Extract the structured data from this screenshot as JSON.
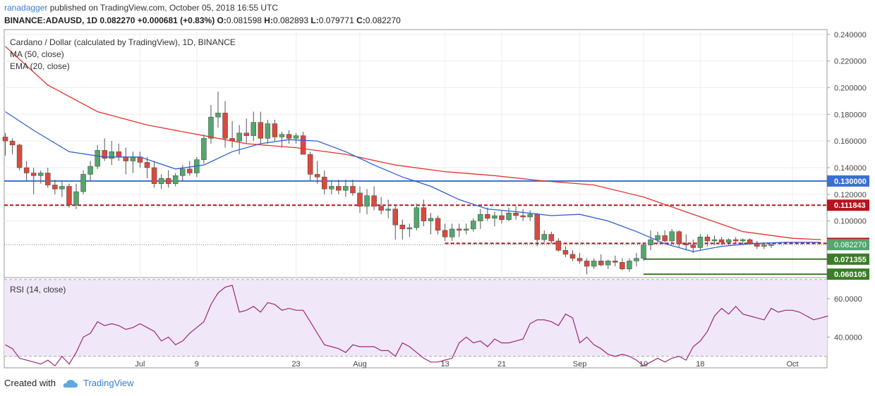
{
  "header": {
    "author": "ranadagger",
    "published_text": "published on TradingView.com, October 05, 2018 16:55 UTC",
    "symbol": "BINANCE:ADAUSD, 1D",
    "price": "0.082270",
    "change": "+0.000681 (+0.83%)",
    "open_label": "O:",
    "open": "0.081598",
    "high_label": "H:",
    "high": "0.082893",
    "low_label": "L:",
    "low": "0.079771",
    "close_label": "C:",
    "close": "0.082270"
  },
  "legend": {
    "title": "Cardano / Dollar (calculated by TradingView), 1D, BINANCE",
    "ma": "MA (50, close)",
    "ema": "EMA (20, close)",
    "rsi": "RSI (14, close)"
  },
  "footer": {
    "created_with": "Created with",
    "brand": "TradingView"
  },
  "colors": {
    "bull": "#53a66c",
    "bear": "#d84a3e",
    "ma": "#e0342b",
    "ema": "#2f5fd4",
    "level_blue": "#3c6fd3",
    "level_red": "#b8121e",
    "support_green": "#3b7d2a",
    "rsi_line": "#a0267a",
    "rsi_band": "#f0e8f8"
  },
  "chart_data": [
    {
      "type": "candlestick",
      "ylim": [
        0.0575,
        0.2436
      ],
      "y_ticks": [
        "0.240000",
        "0.220000",
        "0.200000",
        "0.180000",
        "0.160000",
        "0.140000",
        "0.120000",
        "0.100000"
      ],
      "x_ticks": [
        {
          "label": "Jul",
          "day": 19
        },
        {
          "label": "9",
          "day": 27
        },
        {
          "label": "23",
          "day": 41
        },
        {
          "label": "Aug",
          "day": 50
        },
        {
          "label": "13",
          "day": 62
        },
        {
          "label": "21",
          "day": 70
        },
        {
          "label": "Sep",
          "day": 81
        },
        {
          "label": "10",
          "day": 90
        },
        {
          "label": "18",
          "day": 98
        },
        {
          "label": "Oct",
          "day": 111
        }
      ],
      "candles": [
        [
          0.163,
          0.166,
          0.149,
          0.16
        ],
        [
          0.16,
          0.162,
          0.15,
          0.157
        ],
        [
          0.157,
          0.158,
          0.138,
          0.14
        ],
        [
          0.14,
          0.145,
          0.13,
          0.136
        ],
        [
          0.136,
          0.14,
          0.12,
          0.134
        ],
        [
          0.134,
          0.138,
          0.128,
          0.136
        ],
        [
          0.136,
          0.14,
          0.125,
          0.127
        ],
        [
          0.127,
          0.131,
          0.12,
          0.124
        ],
        [
          0.124,
          0.13,
          0.118,
          0.126
        ],
        [
          0.126,
          0.128,
          0.11,
          0.112
        ],
        [
          0.112,
          0.128,
          0.109,
          0.122
        ],
        [
          0.122,
          0.138,
          0.12,
          0.135
        ],
        [
          0.135,
          0.145,
          0.13,
          0.141
        ],
        [
          0.141,
          0.157,
          0.139,
          0.153
        ],
        [
          0.153,
          0.162,
          0.145,
          0.147
        ],
        [
          0.147,
          0.16,
          0.142,
          0.152
        ],
        [
          0.152,
          0.158,
          0.145,
          0.148
        ],
        [
          0.148,
          0.155,
          0.135,
          0.145
        ],
        [
          0.145,
          0.152,
          0.136,
          0.148
        ],
        [
          0.148,
          0.152,
          0.14,
          0.144
        ],
        [
          0.144,
          0.148,
          0.132,
          0.14
        ],
        [
          0.14,
          0.145,
          0.125,
          0.128
        ],
        [
          0.128,
          0.135,
          0.124,
          0.132
        ],
        [
          0.132,
          0.138,
          0.125,
          0.128
        ],
        [
          0.128,
          0.136,
          0.126,
          0.134
        ],
        [
          0.134,
          0.142,
          0.13,
          0.139
        ],
        [
          0.139,
          0.145,
          0.134,
          0.136
        ],
        [
          0.136,
          0.148,
          0.133,
          0.146
        ],
        [
          0.146,
          0.165,
          0.143,
          0.162
        ],
        [
          0.162,
          0.187,
          0.158,
          0.178
        ],
        [
          0.178,
          0.197,
          0.17,
          0.181
        ],
        [
          0.181,
          0.19,
          0.155,
          0.162
        ],
        [
          0.162,
          0.175,
          0.155,
          0.16
        ],
        [
          0.16,
          0.172,
          0.15,
          0.166
        ],
        [
          0.166,
          0.177,
          0.158,
          0.164
        ],
        [
          0.164,
          0.182,
          0.16,
          0.174
        ],
        [
          0.174,
          0.182,
          0.158,
          0.162
        ],
        [
          0.162,
          0.176,
          0.158,
          0.173
        ],
        [
          0.173,
          0.176,
          0.16,
          0.163
        ],
        [
          0.163,
          0.167,
          0.155,
          0.165
        ],
        [
          0.165,
          0.168,
          0.158,
          0.162
        ],
        [
          0.162,
          0.166,
          0.158,
          0.164
        ],
        [
          0.164,
          0.167,
          0.15,
          0.15
        ],
        [
          0.15,
          0.152,
          0.13,
          0.135
        ],
        [
          0.135,
          0.145,
          0.128,
          0.133
        ],
        [
          0.133,
          0.138,
          0.12,
          0.124
        ],
        [
          0.124,
          0.13,
          0.12,
          0.126
        ],
        [
          0.126,
          0.131,
          0.12,
          0.123
        ],
        [
          0.123,
          0.131,
          0.118,
          0.126
        ],
        [
          0.126,
          0.131,
          0.119,
          0.121
        ],
        [
          0.121,
          0.126,
          0.106,
          0.111
        ],
        [
          0.111,
          0.124,
          0.105,
          0.119
        ],
        [
          0.119,
          0.126,
          0.108,
          0.111
        ],
        [
          0.111,
          0.118,
          0.105,
          0.108
        ],
        [
          0.108,
          0.116,
          0.102,
          0.109
        ],
        [
          0.109,
          0.111,
          0.086,
          0.097
        ],
        [
          0.097,
          0.101,
          0.086,
          0.094
        ],
        [
          0.094,
          0.098,
          0.088,
          0.095
        ],
        [
          0.095,
          0.113,
          0.093,
          0.11
        ],
        [
          0.11,
          0.116,
          0.096,
          0.1
        ],
        [
          0.1,
          0.106,
          0.09,
          0.102
        ],
        [
          0.102,
          0.104,
          0.09,
          0.093
        ],
        [
          0.093,
          0.098,
          0.085,
          0.088
        ],
        [
          0.088,
          0.098,
          0.085,
          0.094
        ],
        [
          0.094,
          0.098,
          0.088,
          0.093
        ],
        [
          0.093,
          0.098,
          0.09,
          0.094
        ],
        [
          0.094,
          0.102,
          0.092,
          0.1
        ],
        [
          0.1,
          0.109,
          0.094,
          0.105
        ],
        [
          0.105,
          0.11,
          0.1,
          0.102
        ],
        [
          0.102,
          0.107,
          0.096,
          0.104
        ],
        [
          0.104,
          0.108,
          0.098,
          0.101
        ],
        [
          0.101,
          0.11,
          0.1,
          0.106
        ],
        [
          0.106,
          0.111,
          0.101,
          0.104
        ],
        [
          0.104,
          0.109,
          0.1,
          0.103
        ],
        [
          0.103,
          0.108,
          0.1,
          0.105
        ],
        [
          0.105,
          0.106,
          0.081,
          0.086
        ],
        [
          0.086,
          0.093,
          0.084,
          0.09
        ],
        [
          0.09,
          0.092,
          0.083,
          0.085
        ],
        [
          0.085,
          0.087,
          0.077,
          0.078
        ],
        [
          0.078,
          0.081,
          0.073,
          0.075
        ],
        [
          0.075,
          0.078,
          0.07,
          0.072
        ],
        [
          0.072,
          0.076,
          0.068,
          0.07
        ],
        [
          0.07,
          0.072,
          0.06,
          0.066
        ],
        [
          0.066,
          0.072,
          0.064,
          0.07
        ],
        [
          0.07,
          0.075,
          0.066,
          0.067
        ],
        [
          0.067,
          0.071,
          0.064,
          0.07
        ],
        [
          0.07,
          0.074,
          0.066,
          0.069
        ],
        [
          0.069,
          0.072,
          0.063,
          0.064
        ],
        [
          0.064,
          0.072,
          0.062,
          0.07
        ],
        [
          0.07,
          0.076,
          0.066,
          0.072
        ],
        [
          0.072,
          0.083,
          0.07,
          0.082
        ],
        [
          0.082,
          0.093,
          0.078,
          0.086
        ],
        [
          0.086,
          0.092,
          0.083,
          0.089
        ],
        [
          0.089,
          0.093,
          0.084,
          0.085
        ],
        [
          0.085,
          0.094,
          0.083,
          0.092
        ],
        [
          0.092,
          0.093,
          0.08,
          0.083
        ],
        [
          0.083,
          0.09,
          0.078,
          0.082
        ],
        [
          0.082,
          0.086,
          0.076,
          0.08
        ],
        [
          0.08,
          0.09,
          0.078,
          0.088
        ],
        [
          0.088,
          0.09,
          0.081,
          0.085
        ],
        [
          0.085,
          0.089,
          0.082,
          0.086
        ],
        [
          0.086,
          0.088,
          0.082,
          0.084
        ],
        [
          0.084,
          0.087,
          0.082,
          0.086
        ],
        [
          0.086,
          0.088,
          0.083,
          0.085
        ],
        [
          0.085,
          0.087,
          0.082,
          0.086
        ],
        [
          0.086,
          0.087,
          0.082,
          0.083
        ],
        [
          0.083,
          0.085,
          0.079,
          0.081
        ],
        [
          0.081,
          0.084,
          0.079,
          0.082
        ],
        [
          0.0816,
          0.0829,
          0.0798,
          0.0823
        ]
      ],
      "ma50": [
        [
          0,
          0.231
        ],
        [
          6,
          0.202
        ],
        [
          13,
          0.182
        ],
        [
          20,
          0.172
        ],
        [
          27,
          0.165
        ],
        [
          34,
          0.158
        ],
        [
          41,
          0.155
        ],
        [
          48,
          0.15
        ],
        [
          55,
          0.142
        ],
        [
          62,
          0.137
        ],
        [
          69,
          0.134
        ],
        [
          76,
          0.13
        ],
        [
          83,
          0.127
        ],
        [
          90,
          0.118
        ],
        [
          97,
          0.105
        ],
        [
          104,
          0.092
        ],
        [
          111,
          0.087
        ],
        [
          115,
          0.086
        ]
      ],
      "ema20": [
        [
          0,
          0.182
        ],
        [
          4,
          0.168
        ],
        [
          9,
          0.152
        ],
        [
          14,
          0.148
        ],
        [
          19,
          0.148
        ],
        [
          24,
          0.139
        ],
        [
          28,
          0.142
        ],
        [
          32,
          0.152
        ],
        [
          36,
          0.158
        ],
        [
          40,
          0.161
        ],
        [
          44,
          0.16
        ],
        [
          48,
          0.152
        ],
        [
          52,
          0.142
        ],
        [
          56,
          0.133
        ],
        [
          60,
          0.126
        ],
        [
          64,
          0.116
        ],
        [
          68,
          0.109
        ],
        [
          72,
          0.107
        ],
        [
          77,
          0.104
        ],
        [
          81,
          0.105
        ],
        [
          85,
          0.1
        ],
        [
          89,
          0.092
        ],
        [
          93,
          0.083
        ],
        [
          97,
          0.077
        ],
        [
          101,
          0.081
        ],
        [
          105,
          0.083
        ],
        [
          110,
          0.084
        ],
        [
          115,
          0.084
        ]
      ],
      "levels": [
        {
          "value": 0.13,
          "label": "0.130000",
          "style": "solid",
          "color": "#3c6fd3"
        },
        {
          "value": 0.111843,
          "label": "0.111843",
          "style": "dashed",
          "color": "#b8121e"
        },
        {
          "value": 0.083192,
          "label": "0.083192",
          "style": "dashed",
          "color": "#b8121e",
          "from_day": 62
        },
        {
          "value": 0.071355,
          "label": "0.071355",
          "style": "solid",
          "color": "#3b7d2a",
          "from_day": 90
        },
        {
          "value": 0.060105,
          "label": "0.060105",
          "style": "solid",
          "color": "#3b7d2a",
          "from_day": 90
        }
      ],
      "last_price": {
        "value": 0.08227,
        "label": "0.082270"
      }
    },
    {
      "type": "line",
      "name": "RSI (14, close)",
      "ylim": [
        24,
        71
      ],
      "y_ticks": [
        "60.0000",
        "40.0000"
      ],
      "band": [
        30,
        70
      ],
      "values": [
        36,
        34,
        29,
        28,
        27,
        26,
        28,
        25,
        30,
        26,
        32,
        40,
        42,
        48,
        46,
        47,
        46,
        44,
        45,
        47,
        45,
        43,
        38,
        40,
        36,
        38,
        42,
        45,
        48,
        57,
        63,
        66,
        67,
        53,
        54,
        56,
        53,
        58,
        57,
        54,
        55,
        54,
        54,
        48,
        42,
        36,
        35,
        34,
        32,
        36,
        35,
        35,
        35,
        33,
        33,
        30,
        37,
        35,
        32,
        29,
        27,
        27,
        28,
        29,
        37,
        40,
        37,
        38,
        35,
        39,
        37,
        37,
        38,
        39,
        47,
        49,
        49,
        48,
        46,
        52,
        50,
        37,
        40,
        36,
        34,
        31,
        30,
        31,
        30,
        28,
        25,
        27,
        29,
        27,
        29,
        30,
        28,
        35,
        38,
        43,
        51,
        55,
        52,
        56,
        52,
        51,
        50,
        49,
        55,
        53,
        54,
        54,
        53,
        51,
        49,
        50,
        51
      ]
    }
  ]
}
